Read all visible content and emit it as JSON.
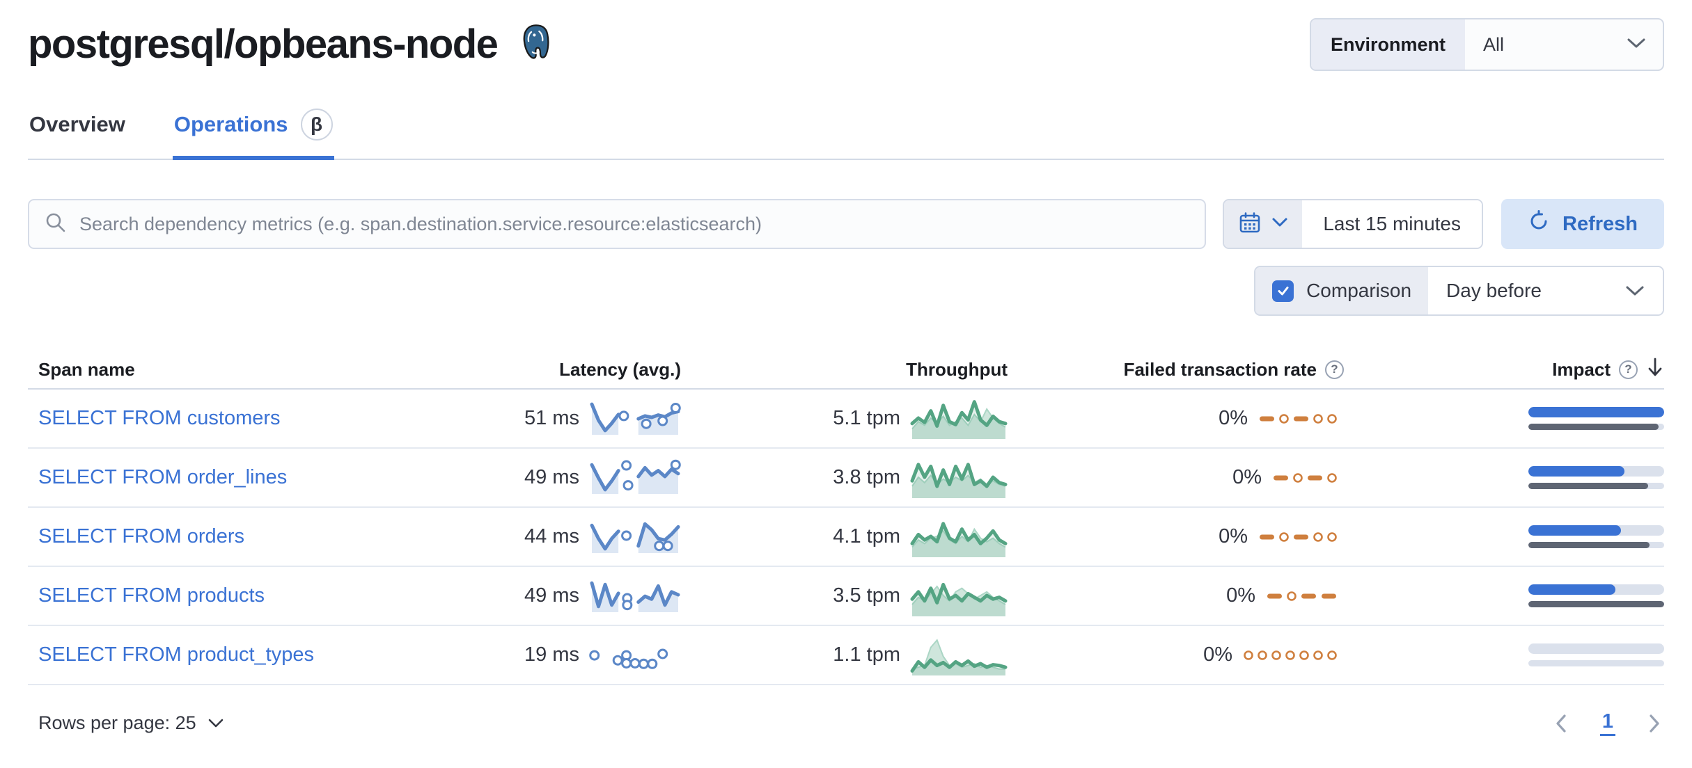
{
  "page": {
    "title": "postgresql/opbeans-node"
  },
  "environment": {
    "label": "Environment",
    "value": "All"
  },
  "tabs": [
    {
      "label": "Overview",
      "active": false
    },
    {
      "label": "Operations",
      "active": true,
      "badge": "β"
    }
  ],
  "search": {
    "placeholder": "Search dependency metrics (e.g. span.destination.service.resource:elasticsearch)"
  },
  "time": {
    "range": "Last 15 minutes",
    "refresh_label": "Refresh"
  },
  "comparison": {
    "label": "Comparison",
    "checked": true,
    "value": "Day before"
  },
  "table": {
    "columns": [
      "Span name",
      "Latency (avg.)",
      "Throughput",
      "Failed transaction rate",
      "Impact"
    ],
    "sort": {
      "column": "Impact",
      "direction": "desc"
    },
    "rows": [
      {
        "span_name": "SELECT FROM customers",
        "latency": "51 ms",
        "throughput": "5.1 tpm",
        "failed_rate": "0%",
        "impact_pct": 100,
        "impact_prev_pct": 96,
        "latency_spark": {
          "line": [
            0.05,
            0.6,
            0.95,
            0.7,
            0.4,
            null,
            null,
            0.55,
            0.45,
            0.5,
            0.42,
            0.48,
            0.35,
            0.3
          ],
          "dots": [
            [
              0.37,
              0.45
            ],
            [
              0.63,
              0.72
            ],
            [
              0.82,
              0.62
            ],
            [
              0.97,
              0.18
            ]
          ]
        },
        "throughput_spark": {
          "current": [
            0.65,
            0.5,
            0.62,
            0.3,
            0.72,
            0.15,
            0.6,
            0.68,
            0.35,
            0.55,
            0.05,
            0.55,
            0.7,
            0.45,
            0.6,
            0.65
          ],
          "previous": [
            0.8,
            0.6,
            0.7,
            0.5,
            0.65,
            0.45,
            0.7,
            0.6,
            0.5,
            0.7,
            0.4,
            0.6,
            0.25,
            0.5,
            0.65,
            0.75
          ]
        },
        "failed_spark": [
          "dash",
          "dot",
          "dash",
          "dot",
          "dot"
        ]
      },
      {
        "span_name": "SELECT FROM order_lines",
        "latency": "49 ms",
        "throughput": "3.8 tpm",
        "failed_rate": "0%",
        "impact_pct": 71,
        "impact_prev_pct": 88,
        "latency_spark": {
          "line": [
            0.1,
            0.55,
            0.95,
            0.65,
            0.3,
            null,
            null,
            0.5,
            0.2,
            0.45,
            0.3,
            0.5,
            0.25,
            0.4
          ],
          "dots": [
            [
              0.4,
              0.12
            ],
            [
              0.42,
              0.8
            ],
            [
              0.97,
              0.1
            ]
          ]
        },
        "throughput_spark": {
          "current": [
            0.6,
            0.15,
            0.5,
            0.2,
            0.75,
            0.3,
            0.7,
            0.2,
            0.55,
            0.15,
            0.7,
            0.6,
            0.75,
            0.5,
            0.65,
            0.7
          ],
          "previous": [
            0.75,
            0.5,
            0.65,
            0.45,
            0.7,
            0.55,
            0.65,
            0.5,
            0.6,
            0.45,
            0.65,
            0.55,
            0.7,
            0.6,
            0.7,
            0.75
          ]
        },
        "failed_spark": [
          "dash",
          "dot",
          "dash",
          "dot"
        ]
      },
      {
        "span_name": "SELECT FROM orders",
        "latency": "44 ms",
        "throughput": "4.1 tpm",
        "failed_rate": "0%",
        "impact_pct": 68,
        "impact_prev_pct": 89,
        "latency_spark": {
          "line": [
            0.15,
            0.6,
            0.95,
            0.6,
            0.35,
            null,
            null,
            0.85,
            0.1,
            0.3,
            0.6,
            0.65,
            0.45,
            0.2
          ],
          "dots": [
            [
              0.4,
              0.5
            ],
            [
              0.78,
              0.85
            ],
            [
              0.88,
              0.85
            ]
          ]
        },
        "throughput_spark": {
          "current": [
            0.7,
            0.45,
            0.6,
            0.5,
            0.65,
            0.15,
            0.55,
            0.65,
            0.3,
            0.6,
            0.45,
            0.7,
            0.55,
            0.35,
            0.6,
            0.7
          ],
          "previous": [
            0.8,
            0.6,
            0.7,
            0.55,
            0.5,
            0.35,
            0.6,
            0.7,
            0.5,
            0.65,
            0.3,
            0.55,
            0.65,
            0.55,
            0.7,
            0.8
          ]
        },
        "failed_spark": [
          "dash",
          "dot",
          "dash",
          "dot",
          "dot"
        ]
      },
      {
        "span_name": "SELECT FROM products",
        "latency": "49 ms",
        "throughput": "3.5 tpm",
        "failed_rate": "0%",
        "impact_pct": 64,
        "impact_prev_pct": 100,
        "latency_spark": {
          "line": [
            0.1,
            0.9,
            0.15,
            0.85,
            0.45,
            null,
            null,
            0.75,
            0.55,
            0.65,
            0.2,
            0.85,
            0.4,
            0.5
          ],
          "dots": [
            [
              0.41,
              0.62
            ],
            [
              0.41,
              0.85
            ]
          ]
        },
        "throughput_spark": {
          "current": [
            0.6,
            0.4,
            0.65,
            0.3,
            0.7,
            0.2,
            0.6,
            0.5,
            0.65,
            0.45,
            0.55,
            0.65,
            0.5,
            0.6,
            0.55,
            0.65
          ],
          "previous": [
            0.75,
            0.55,
            0.65,
            0.45,
            0.25,
            0.5,
            0.65,
            0.4,
            0.3,
            0.45,
            0.6,
            0.5,
            0.4,
            0.55,
            0.65,
            0.75
          ]
        },
        "failed_spark": [
          "dash",
          "dot",
          "dash",
          "dash"
        ]
      },
      {
        "span_name": "SELECT FROM product_types",
        "latency": "19 ms",
        "throughput": "1.1 tpm",
        "failed_rate": "0%",
        "impact_pct": 0,
        "impact_prev_pct": 0,
        "latency_spark": {
          "line": [],
          "dots": [
            [
              0.03,
              0.55
            ],
            [
              0.3,
              0.72
            ],
            [
              0.4,
              0.55
            ],
            [
              0.4,
              0.82
            ],
            [
              0.5,
              0.82
            ],
            [
              0.6,
              0.84
            ],
            [
              0.7,
              0.84
            ],
            [
              0.82,
              0.5
            ]
          ]
        },
        "throughput_spark": {
          "current": [
            0.95,
            0.7,
            0.85,
            0.65,
            0.8,
            0.72,
            0.85,
            0.7,
            0.8,
            0.68,
            0.82,
            0.75,
            0.85,
            0.78,
            0.8,
            0.85
          ],
          "previous": [
            0.9,
            0.85,
            0.8,
            0.3,
            0.1,
            0.55,
            0.8,
            0.75,
            0.85,
            0.8,
            0.75,
            0.85,
            0.8,
            0.85,
            0.9,
            0.9
          ]
        },
        "failed_spark": [
          "dot",
          "dot",
          "dot",
          "dot",
          "dot",
          "dot",
          "dot"
        ]
      }
    ]
  },
  "footer": {
    "rows_per_page_label": "Rows per page: 25",
    "page": "1"
  },
  "colors": {
    "accent_blue": "#3a72d4",
    "link_blue": "#3a72d4",
    "latency_spark": "#5b87c7",
    "latency_area": "#dde7f4",
    "throughput_line": "#54a483",
    "throughput_comparison_area": "#cfe6dc",
    "failed_orange": "#cf7f3e",
    "impact_bar_blue": "#3a72d4",
    "impact_bar_gray": "#5e6573",
    "impact_track": "#dbe1ec",
    "border_gray": "#d3dae6"
  }
}
